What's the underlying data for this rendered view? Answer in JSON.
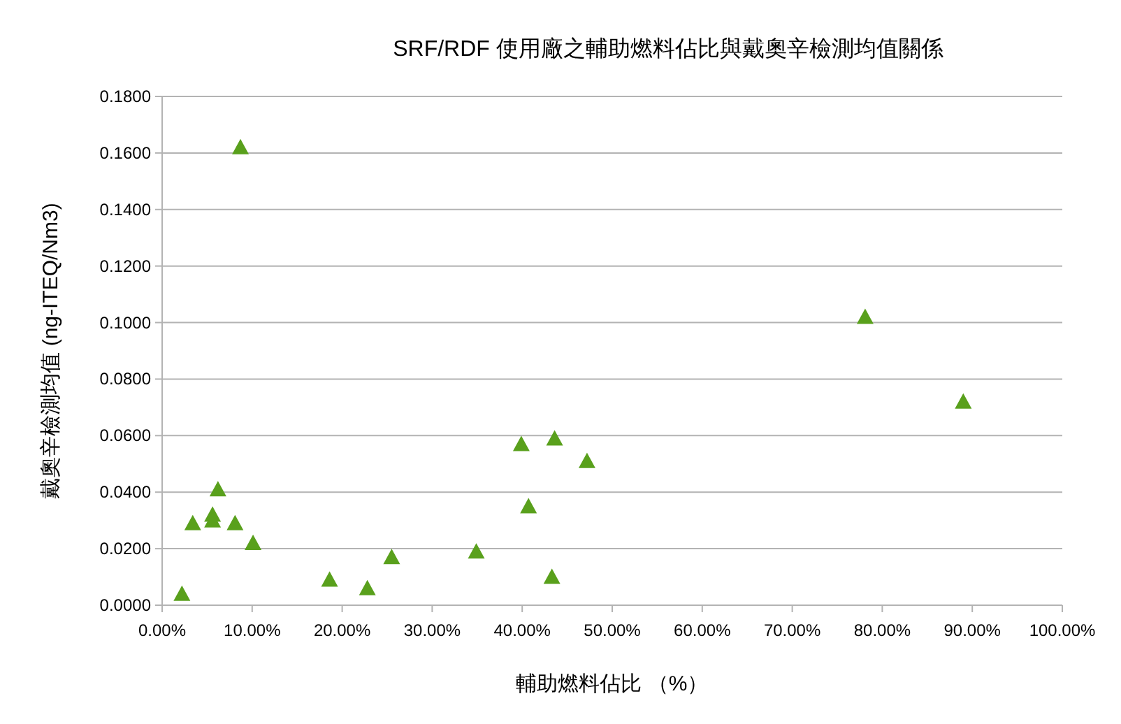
{
  "chart_data": {
    "type": "scatter",
    "title": "SRF/RDF 使用廠之輔助燃料佔比與戴奧辛檢測均值關係",
    "xlabel": "輔助燃料佔比 （%）",
    "ylabel": "戴奧辛檢測均值 (ng-ITEQ/Nm3)",
    "xlim": [
      0,
      100
    ],
    "ylim": [
      0,
      0.18
    ],
    "xticks": [
      {
        "value": 0,
        "label": "0.00%"
      },
      {
        "value": 10,
        "label": "10.00%"
      },
      {
        "value": 20,
        "label": "20.00%"
      },
      {
        "value": 30,
        "label": "30.00%"
      },
      {
        "value": 40,
        "label": "40.00%"
      },
      {
        "value": 50,
        "label": "50.00%"
      },
      {
        "value": 60,
        "label": "60.00%"
      },
      {
        "value": 70,
        "label": "70.00%"
      },
      {
        "value": 80,
        "label": "80.00%"
      },
      {
        "value": 90,
        "label": "90.00%"
      },
      {
        "value": 100,
        "label": "100.00%"
      }
    ],
    "yticks": [
      {
        "value": 0,
        "label": "0.0000"
      },
      {
        "value": 0.02,
        "label": "0.0200"
      },
      {
        "value": 0.04,
        "label": "0.0400"
      },
      {
        "value": 0.06,
        "label": "0.0600"
      },
      {
        "value": 0.08,
        "label": "0.0800"
      },
      {
        "value": 0.1,
        "label": "0.1000"
      },
      {
        "value": 0.12,
        "label": "0.1200"
      },
      {
        "value": 0.14,
        "label": "0.1400"
      },
      {
        "value": 0.16,
        "label": "0.1600"
      },
      {
        "value": 0.18,
        "label": "0.1800"
      }
    ],
    "grid": "y",
    "marker": "triangle",
    "series": [
      {
        "color": "#59a01c",
        "x": [
          2.2,
          3.4,
          5.6,
          5.6,
          6.2,
          8.1,
          8.7,
          10.1,
          18.6,
          22.8,
          25.5,
          34.9,
          39.9,
          40.7,
          43.3,
          43.6,
          47.2,
          78.1,
          89.0
        ],
        "values": [
          0.004,
          0.029,
          0.032,
          0.03,
          0.041,
          0.029,
          0.162,
          0.022,
          0.009,
          0.006,
          0.017,
          0.019,
          0.057,
          0.035,
          0.01,
          0.059,
          0.051,
          0.102,
          0.072
        ]
      }
    ]
  }
}
